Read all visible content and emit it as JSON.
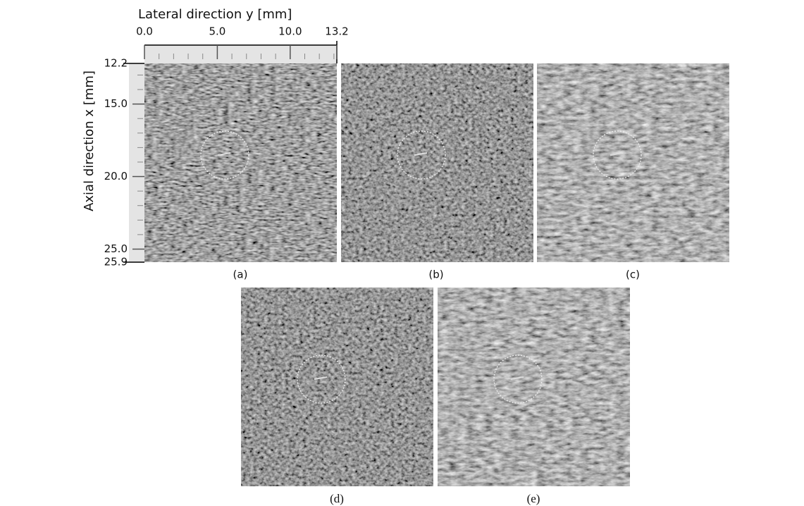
{
  "figure": {
    "lateral_axis": {
      "title": "Lateral direction y [mm]",
      "range": [
        0,
        13.2
      ],
      "ticks": [
        {
          "value": 0,
          "label": "0.0"
        },
        {
          "value": 5,
          "label": "5.0"
        },
        {
          "value": 10,
          "label": "10.0"
        },
        {
          "value": 13.2,
          "label": "13.2"
        }
      ]
    },
    "axial_axis": {
      "title": "Axial direction x [mm]",
      "range": [
        12.2,
        25.9
      ],
      "ticks": [
        {
          "value": 12.2,
          "label": "12.2"
        },
        {
          "value": 15,
          "label": "15.0"
        },
        {
          "value": 20,
          "label": "20.0"
        },
        {
          "value": 25,
          "label": "25.0"
        },
        {
          "value": 25.9,
          "label": "25.9"
        }
      ]
    },
    "panels": [
      "(a)",
      "(b)",
      "(c)",
      "(d)",
      "(e)"
    ]
  }
}
